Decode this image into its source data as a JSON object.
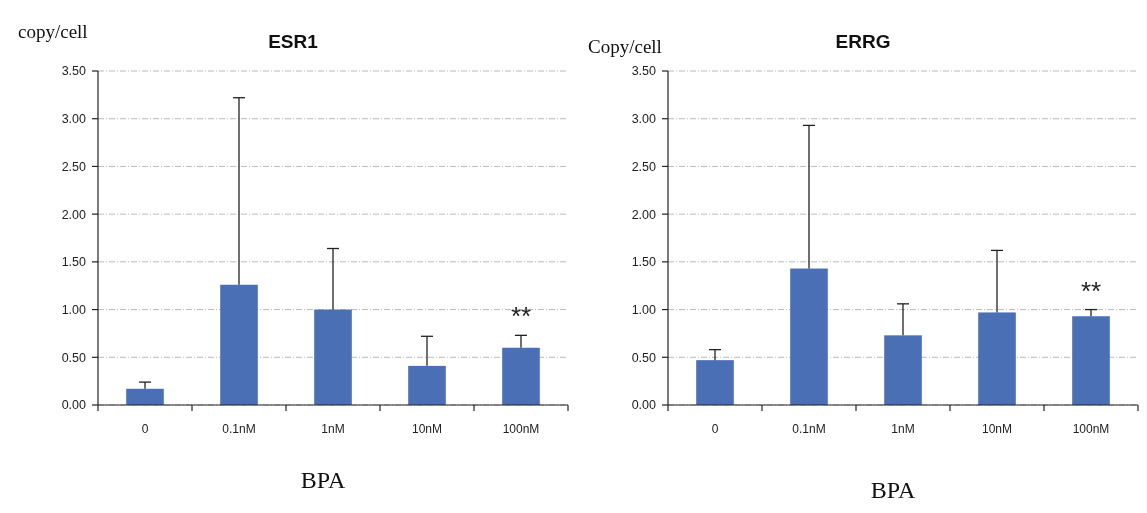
{
  "chart_data": [
    {
      "type": "bar",
      "title": "ESR1",
      "xlabel": "BPA",
      "ylabel": "copy/cell",
      "categories": [
        "0",
        "0.1nM",
        "1nM",
        "10nM",
        "100nM"
      ],
      "values": [
        0.17,
        1.26,
        1.0,
        0.41,
        0.6
      ],
      "errors": [
        [
          0.17,
          0.24
        ],
        [
          1.26,
          3.22
        ],
        [
          1.0,
          1.64
        ],
        [
          0.41,
          0.72
        ],
        [
          0.6,
          0.73
        ]
      ],
      "color": "#4a6fb5",
      "ylim": [
        0,
        3.5
      ],
      "yticks": [
        {
          "value": 0,
          "label": "0.00"
        },
        {
          "value": 0.5,
          "label": "0.50"
        },
        {
          "value": 1,
          "label": "1.00"
        },
        {
          "value": 1.5,
          "label": "1.50"
        },
        {
          "value": 2,
          "label": "2.00"
        },
        {
          "value": 2.5,
          "label": "2.50"
        },
        {
          "value": 3,
          "label": "3.00"
        },
        {
          "value": 3.5,
          "label": "3.50"
        }
      ],
      "grid": "y",
      "annotations": [
        "**"
      ]
    },
    {
      "type": "bar",
      "title": "ERRG",
      "xlabel": "BPA",
      "ylabel": "Copy/cell",
      "categories": [
        "0",
        "0.1nM",
        "1nM",
        "10nM",
        "100nM"
      ],
      "values": [
        0.47,
        1.43,
        0.73,
        0.97,
        0.93
      ],
      "errors": [
        [
          0.47,
          0.58
        ],
        [
          1.43,
          2.93
        ],
        [
          0.73,
          1.06
        ],
        [
          0.97,
          1.62
        ],
        [
          0.93,
          1.0
        ]
      ],
      "color": "#4a6fb5",
      "ylim": [
        0,
        3.5
      ],
      "yticks": [
        {
          "value": 0,
          "label": "0.00"
        },
        {
          "value": 0.5,
          "label": "0.50"
        },
        {
          "value": 1,
          "label": "1.00"
        },
        {
          "value": 1.5,
          "label": "1.50"
        },
        {
          "value": 2,
          "label": "2.00"
        },
        {
          "value": 2.5,
          "label": "2.50"
        },
        {
          "value": 3,
          "label": "3.00"
        },
        {
          "value": 3.5,
          "label": "3.50"
        }
      ],
      "grid": "y",
      "annotations": [
        "**"
      ]
    }
  ]
}
